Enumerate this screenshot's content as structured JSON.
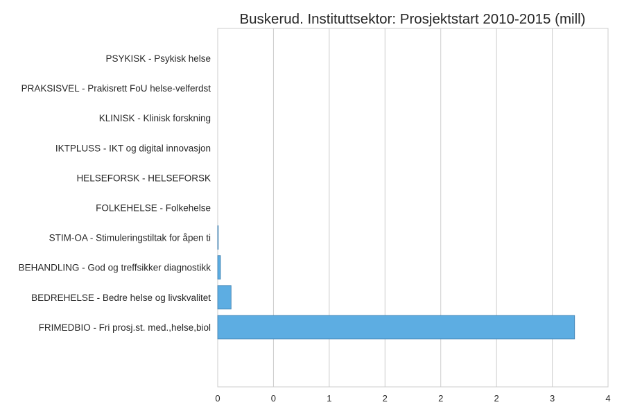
{
  "chart_data": {
    "type": "bar",
    "orientation": "horizontal",
    "title": "Buskerud. Instituttsektor: Prosjektstart 2010-2015 (mill)",
    "xlabel": "",
    "ylabel": "",
    "categories": [
      "PSYKISK - Psykisk helse",
      "PRAKSISVEL - Prakisrett FoU helse-velferdst",
      "KLINISK - Klinisk forskning",
      "IKTPLUSS - IKT og digital innovasjon",
      "HELSEFORSK - HELSEFORSK",
      "FOLKEHELSE - Folkehelse",
      "STIM-OA - Stimuleringstiltak for åpen ti",
      "BEHANDLING - God og treffsikker diagnostikk",
      "BEDREHELSE - Bedre helse og livskvalitet",
      "FRIMEDBIO - Fri prosj.st. med.,helse,biol"
    ],
    "values": [
      0.0,
      0.0,
      0.0,
      0.0,
      0.0,
      0.0,
      0.005,
      0.025,
      0.12,
      3.2
    ],
    "xlim": [
      0,
      3.5
    ],
    "xticks": [
      0,
      0.5,
      1.0,
      1.5,
      2.0,
      2.5,
      3.0,
      3.5
    ],
    "xtick_labels": [
      "0",
      "0",
      "1",
      "2",
      "2",
      "2",
      "3",
      "4"
    ],
    "grid": "vertical",
    "legend": "none",
    "bar_color": "#5DADE2",
    "bar_edge_color": "#3f7fae"
  }
}
